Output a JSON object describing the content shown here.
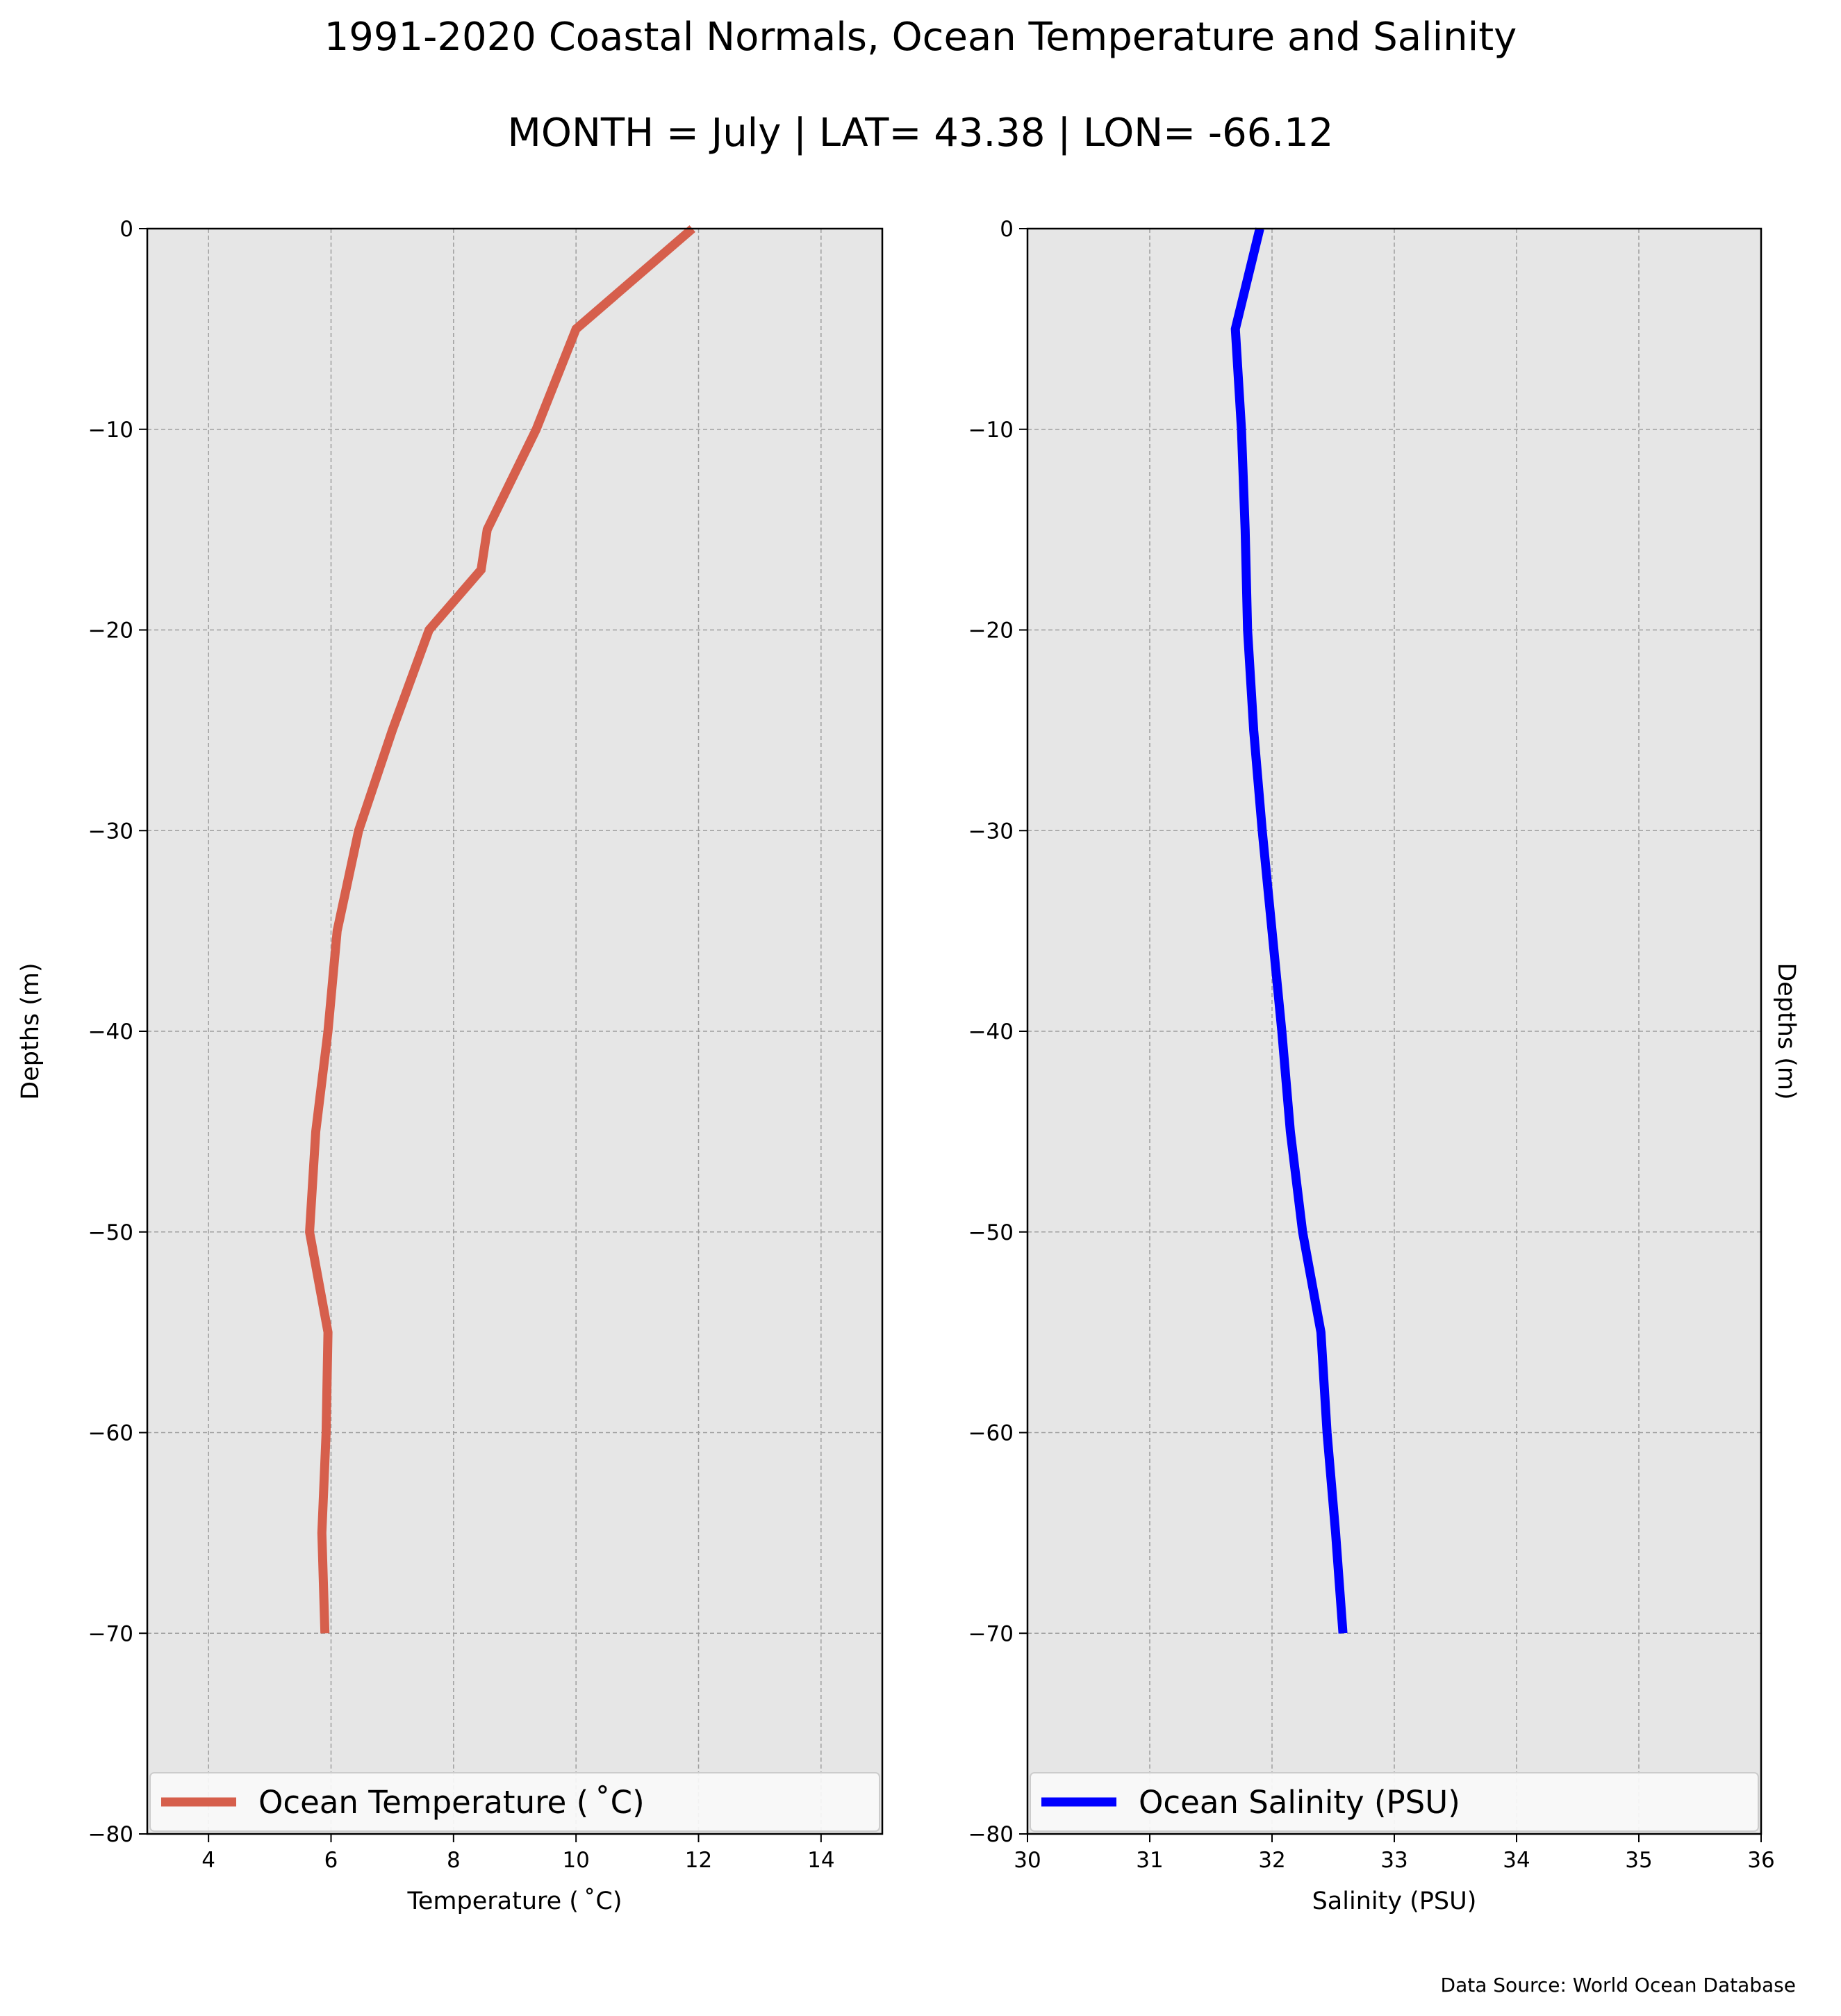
{
  "figure": {
    "title": "1991-2020 Coastal Normals, Ocean Temperature and Salinity",
    "subtitle": "MONTH = July | LAT= 43.38 | LON= -66.12",
    "source_note": "Data Source: World Ocean Database"
  },
  "colors": {
    "plot_background": "#e6e6e6",
    "grid": "#9e9e9e",
    "temperature_line": "#d65f4c",
    "salinity_line": "#0000ff"
  },
  "chart_data": [
    {
      "type": "line",
      "orientation": "vertical-profile",
      "series": [
        {
          "name": "Ocean Temperature ($^\\circ$C)",
          "display_name": "Ocean Temperature ( ˚C)",
          "x": [
            11.9,
            10.0,
            9.35,
            8.55,
            8.45,
            7.6,
            7.0,
            6.45,
            6.1,
            5.95,
            5.75,
            5.65,
            5.95,
            5.92,
            5.85,
            5.9
          ],
          "y": [
            0,
            -5,
            -10,
            -15,
            -17,
            -20,
            -25,
            -30,
            -35,
            -40,
            -45,
            -50,
            -55,
            -60,
            -65,
            -70
          ]
        }
      ],
      "xlabel": "Temperature ( ˚C)",
      "ylabel": "Depths (m)",
      "xlim": [
        3,
        15
      ],
      "ylim": [
        -80,
        0
      ],
      "xticks": [
        4,
        6,
        8,
        10,
        12,
        14
      ],
      "xtick_labels": [
        "4",
        "6",
        "8",
        "10",
        "12",
        "14"
      ],
      "yticks": [
        0,
        -10,
        -20,
        -30,
        -40,
        -50,
        -60,
        -70,
        -80
      ],
      "ytick_labels": [
        "0",
        "−10",
        "−20",
        "−30",
        "−40",
        "−50",
        "−60",
        "−70",
        "−80"
      ],
      "grid": true,
      "legend_position": "bottom",
      "legend_label": "Ocean Temperature ( ˚C)"
    },
    {
      "type": "line",
      "orientation": "vertical-profile",
      "series": [
        {
          "name": "Ocean Salinity (PSU)",
          "x": [
            31.9,
            31.7,
            31.75,
            31.78,
            31.8,
            31.85,
            31.92,
            32.0,
            32.08,
            32.15,
            32.25,
            32.4,
            32.45,
            32.52,
            32.58
          ],
          "y": [
            0,
            -5,
            -10,
            -15,
            -20,
            -25,
            -30,
            -35,
            -40,
            -45,
            -50,
            -55,
            -60,
            -65,
            -70
          ]
        }
      ],
      "xlabel": "Salinity (PSU)",
      "ylabel": "Depths (m)",
      "xlim": [
        30,
        36
      ],
      "ylim": [
        -80,
        0
      ],
      "xticks": [
        30,
        31,
        32,
        33,
        34,
        35,
        36
      ],
      "xtick_labels": [
        "30",
        "31",
        "32",
        "33",
        "34",
        "35",
        "36"
      ],
      "yticks": [
        0,
        -10,
        -20,
        -30,
        -40,
        -50,
        -60,
        -70,
        -80
      ],
      "ytick_labels": [
        "0",
        "−10",
        "−20",
        "−30",
        "−40",
        "−50",
        "−60",
        "−70",
        "−80"
      ],
      "grid": true,
      "legend_position": "bottom",
      "legend_label": "Ocean Salinity (PSU)"
    }
  ]
}
